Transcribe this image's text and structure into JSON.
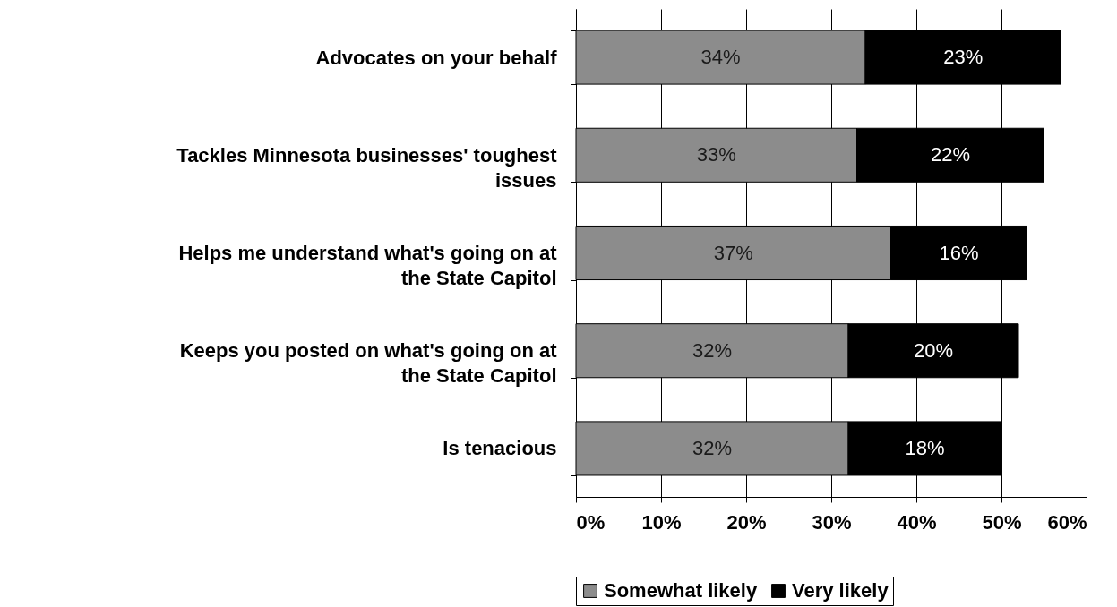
{
  "chart_data": {
    "type": "bar",
    "orientation": "horizontal",
    "stacked": true,
    "categories": [
      "Advocates on your behalf",
      "Tackles Minnesota businesses' toughest issues",
      "Helps me understand what's going on at the State Capitol",
      "Keeps you posted on what's going on at the State Capitol",
      "Is tenacious"
    ],
    "series": [
      {
        "name": "Somewhat likely",
        "color": "#8c8c8c",
        "values": [
          34,
          33,
          37,
          32,
          32
        ],
        "value_labels": [
          "34%",
          "33%",
          "37%",
          "32%",
          "32%"
        ]
      },
      {
        "name": "Very likely",
        "color": "#000000",
        "values": [
          23,
          22,
          16,
          20,
          18
        ],
        "value_labels": [
          "23%",
          "22%",
          "16%",
          "20%",
          "18%"
        ]
      }
    ],
    "xlim": [
      0,
      60
    ],
    "xticks": [
      {
        "value": 0,
        "label": "0%"
      },
      {
        "value": 10,
        "label": "10%"
      },
      {
        "value": 20,
        "label": "20%"
      },
      {
        "value": 30,
        "label": "30%"
      },
      {
        "value": 40,
        "label": "40%"
      },
      {
        "value": 50,
        "label": "50%"
      },
      {
        "value": 60,
        "label": "60%"
      }
    ],
    "grid": "x",
    "legend": "bottom"
  }
}
